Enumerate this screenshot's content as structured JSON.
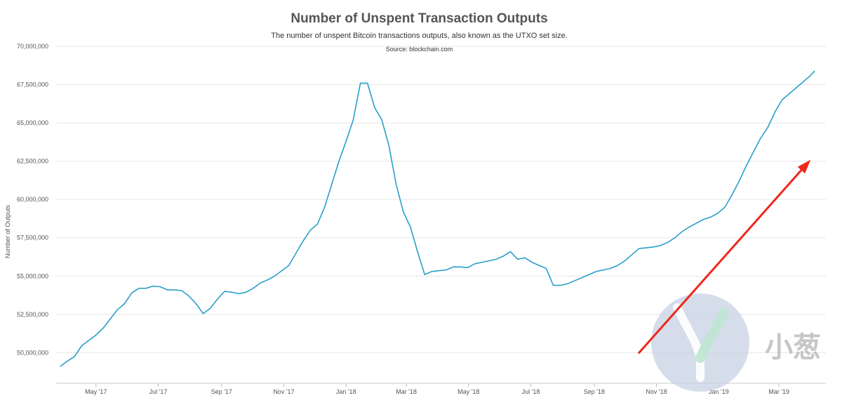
{
  "header": {
    "title": "Number of Unspent Transaction Outputs",
    "subtitle": "The number of unspent Bitcoin transactions outputs, also known as the UTXO set size.",
    "source": "Source: blockchain.com"
  },
  "watermark": {
    "text": "小葱",
    "icon": "scallion-logo-icon"
  },
  "colors": {
    "line": "#2a9fc9",
    "arrow": "#f0271b",
    "grid": "#e6e6e6"
  },
  "chart_data": {
    "type": "line",
    "title": "Number of Unspent Transaction Outputs",
    "xlabel": "",
    "ylabel": "Number of Outputs",
    "xlim": [
      "2017-03-23",
      "2019-04-16"
    ],
    "ylim": [
      48000000,
      70000000
    ],
    "yticks": [
      {
        "value": 50000000,
        "label": "50,000,000"
      },
      {
        "value": 52500000,
        "label": "52,500,000"
      },
      {
        "value": 55000000,
        "label": "55,000,000"
      },
      {
        "value": 57500000,
        "label": "57,500,000"
      },
      {
        "value": 60000000,
        "label": "60,000,000"
      },
      {
        "value": 62500000,
        "label": "62,500,000"
      },
      {
        "value": 65000000,
        "label": "65,000,000"
      },
      {
        "value": 67500000,
        "label": "67,500,000"
      },
      {
        "value": 70000000,
        "label": "70,000,000"
      }
    ],
    "xticks": [
      {
        "date": "2017-05-01",
        "label": "May '17"
      },
      {
        "date": "2017-07-01",
        "label": "Jul '17"
      },
      {
        "date": "2017-09-01",
        "label": "Sep '17"
      },
      {
        "date": "2017-11-01",
        "label": "Nov '17"
      },
      {
        "date": "2018-01-01",
        "label": "Jan '18"
      },
      {
        "date": "2018-03-01",
        "label": "Mar '18"
      },
      {
        "date": "2018-05-01",
        "label": "May '18"
      },
      {
        "date": "2018-07-01",
        "label": "Jul '18"
      },
      {
        "date": "2018-09-01",
        "label": "Sep '18"
      },
      {
        "date": "2018-11-01",
        "label": "Nov '18"
      },
      {
        "date": "2019-01-01",
        "label": "Jan '19"
      },
      {
        "date": "2019-03-01",
        "label": "Mar '19"
      }
    ],
    "grid": true,
    "legend": "none",
    "series": [
      {
        "points": [
          [
            "2017-03-27",
            49100000
          ],
          [
            "2017-04-03",
            49450000
          ],
          [
            "2017-04-10",
            49750000
          ],
          [
            "2017-04-17",
            50450000
          ],
          [
            "2017-04-24",
            50800000
          ],
          [
            "2017-05-01",
            51150000
          ],
          [
            "2017-05-08",
            51600000
          ],
          [
            "2017-05-15",
            52200000
          ],
          [
            "2017-05-22",
            52800000
          ],
          [
            "2017-05-29",
            53200000
          ],
          [
            "2017-06-05",
            53900000
          ],
          [
            "2017-06-12",
            54200000
          ],
          [
            "2017-06-19",
            54200000
          ],
          [
            "2017-06-26",
            54350000
          ],
          [
            "2017-07-03",
            54300000
          ],
          [
            "2017-07-10",
            54100000
          ],
          [
            "2017-07-17",
            54100000
          ],
          [
            "2017-07-24",
            54050000
          ],
          [
            "2017-07-31",
            53700000
          ],
          [
            "2017-08-07",
            53200000
          ],
          [
            "2017-08-14",
            52550000
          ],
          [
            "2017-08-21",
            52900000
          ],
          [
            "2017-08-28",
            53500000
          ],
          [
            "2017-09-04",
            54000000
          ],
          [
            "2017-09-11",
            53950000
          ],
          [
            "2017-09-18",
            53850000
          ],
          [
            "2017-09-25",
            53950000
          ],
          [
            "2017-10-02",
            54200000
          ],
          [
            "2017-10-09",
            54550000
          ],
          [
            "2017-10-16",
            54750000
          ],
          [
            "2017-10-23",
            55000000
          ],
          [
            "2017-10-30",
            55350000
          ],
          [
            "2017-11-06",
            55700000
          ],
          [
            "2017-11-13",
            56500000
          ],
          [
            "2017-11-20",
            57300000
          ],
          [
            "2017-11-27",
            58000000
          ],
          [
            "2017-12-04",
            58400000
          ],
          [
            "2017-12-11",
            59500000
          ],
          [
            "2017-12-18",
            61000000
          ],
          [
            "2017-12-25",
            62500000
          ],
          [
            "2018-01-01",
            63800000
          ],
          [
            "2018-01-08",
            65200000
          ],
          [
            "2018-01-15",
            67600000
          ],
          [
            "2018-01-22",
            67600000
          ],
          [
            "2018-01-29",
            66000000
          ],
          [
            "2018-02-05",
            65200000
          ],
          [
            "2018-02-12",
            63500000
          ],
          [
            "2018-02-19",
            61000000
          ],
          [
            "2018-02-26",
            59200000
          ],
          [
            "2018-03-05",
            58200000
          ],
          [
            "2018-03-12",
            56600000
          ],
          [
            "2018-03-19",
            55100000
          ],
          [
            "2018-03-26",
            55300000
          ],
          [
            "2018-04-02",
            55350000
          ],
          [
            "2018-04-09",
            55400000
          ],
          [
            "2018-04-16",
            55600000
          ],
          [
            "2018-04-23",
            55600000
          ],
          [
            "2018-04-30",
            55550000
          ],
          [
            "2018-05-07",
            55800000
          ],
          [
            "2018-05-14",
            55900000
          ],
          [
            "2018-05-21",
            56000000
          ],
          [
            "2018-05-28",
            56100000
          ],
          [
            "2018-06-04",
            56300000
          ],
          [
            "2018-06-11",
            56600000
          ],
          [
            "2018-06-18",
            56100000
          ],
          [
            "2018-06-25",
            56200000
          ],
          [
            "2018-07-02",
            55900000
          ],
          [
            "2018-07-09",
            55700000
          ],
          [
            "2018-07-16",
            55500000
          ],
          [
            "2018-07-23",
            54400000
          ],
          [
            "2018-07-30",
            54400000
          ],
          [
            "2018-08-06",
            54500000
          ],
          [
            "2018-08-13",
            54700000
          ],
          [
            "2018-08-20",
            54900000
          ],
          [
            "2018-08-27",
            55100000
          ],
          [
            "2018-09-03",
            55300000
          ],
          [
            "2018-09-10",
            55400000
          ],
          [
            "2018-09-17",
            55500000
          ],
          [
            "2018-09-24",
            55700000
          ],
          [
            "2018-10-01",
            56000000
          ],
          [
            "2018-10-08",
            56400000
          ],
          [
            "2018-10-15",
            56800000
          ],
          [
            "2018-10-22",
            56850000
          ],
          [
            "2018-10-29",
            56900000
          ],
          [
            "2018-11-05",
            57000000
          ],
          [
            "2018-11-12",
            57200000
          ],
          [
            "2018-11-19",
            57500000
          ],
          [
            "2018-11-26",
            57900000
          ],
          [
            "2018-12-03",
            58200000
          ],
          [
            "2018-12-10",
            58450000
          ],
          [
            "2018-12-17",
            58700000
          ],
          [
            "2018-12-24",
            58850000
          ],
          [
            "2018-12-31",
            59100000
          ],
          [
            "2019-01-07",
            59500000
          ],
          [
            "2019-01-14",
            60300000
          ],
          [
            "2019-01-21",
            61200000
          ],
          [
            "2019-01-28",
            62200000
          ],
          [
            "2019-02-04",
            63100000
          ],
          [
            "2019-02-11",
            64000000
          ],
          [
            "2019-02-18",
            64700000
          ],
          [
            "2019-02-25",
            65700000
          ],
          [
            "2019-03-04",
            66500000
          ],
          [
            "2019-03-11",
            66900000
          ],
          [
            "2019-03-18",
            67300000
          ],
          [
            "2019-03-25",
            67700000
          ],
          [
            "2019-04-01",
            68100000
          ],
          [
            "2019-04-05",
            68400000
          ]
        ]
      }
    ],
    "annotations": [
      {
        "type": "arrow",
        "from": [
          "2018-10-15",
          50000000
        ],
        "to": [
          "2019-04-01",
          62600000
        ],
        "color": "#f0271b"
      }
    ]
  }
}
